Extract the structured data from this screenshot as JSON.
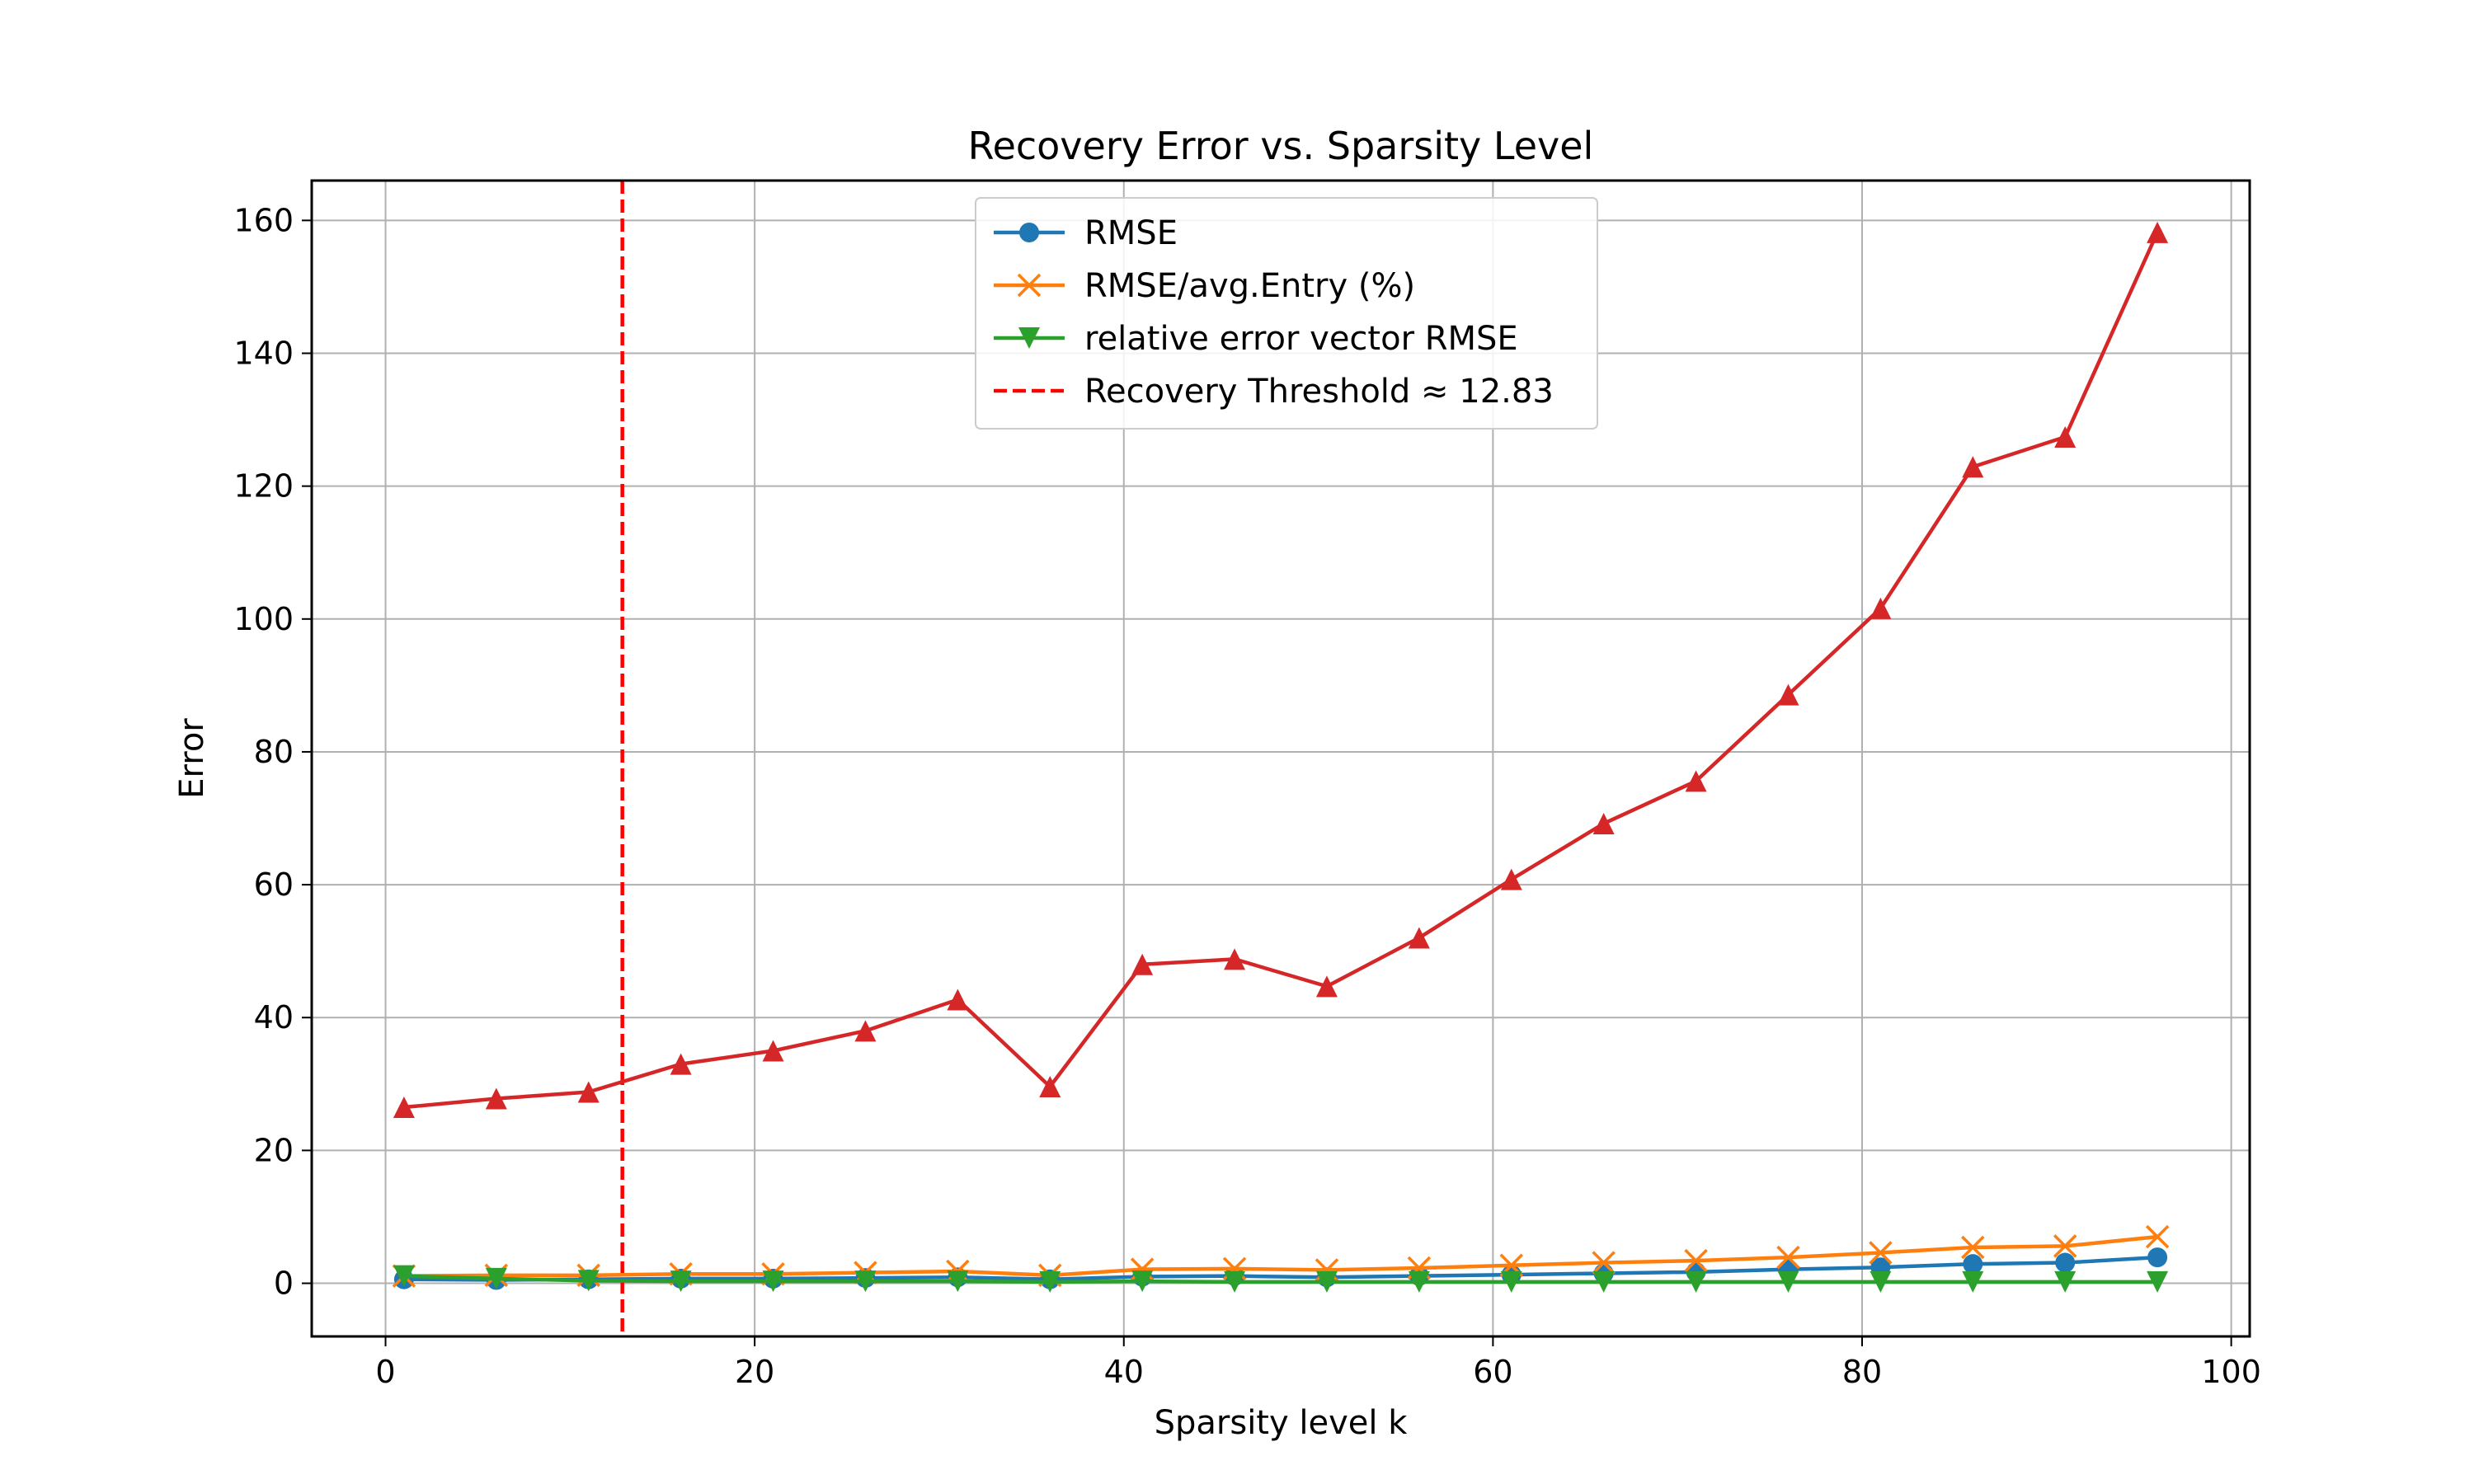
{
  "chart_data": {
    "type": "line",
    "title": "Recovery Error vs. Sparsity Level",
    "xlabel": "Sparsity level k",
    "ylabel": "Error",
    "xlim": [
      -4,
      101
    ],
    "ylim": [
      -8,
      166
    ],
    "xticks": [
      "0",
      "20",
      "40",
      "60",
      "80",
      "100"
    ],
    "yticks": [
      "0",
      "20",
      "40",
      "60",
      "80",
      "100",
      "120",
      "140",
      "160"
    ],
    "grid": true,
    "legend_position": "top-center",
    "x": [
      1,
      6,
      11,
      16,
      21,
      26,
      31,
      36,
      41,
      46,
      51,
      56,
      61,
      66,
      71,
      76,
      81,
      86,
      91,
      96
    ],
    "series": [
      {
        "name": "RMSE",
        "color": "#1f77b4",
        "marker": "circle",
        "values": [
          0.6,
          0.5,
          0.6,
          0.7,
          0.7,
          0.8,
          0.9,
          0.6,
          1.0,
          1.1,
          0.9,
          1.1,
          1.3,
          1.5,
          1.7,
          2.1,
          2.4,
          2.9,
          3.1,
          3.9
        ]
      },
      {
        "name": "RMSE/avg.Entry (%)",
        "color": "#ff7f0e",
        "marker": "x",
        "values": [
          1.1,
          1.2,
          1.2,
          1.4,
          1.4,
          1.6,
          1.8,
          1.2,
          2.1,
          2.2,
          2.0,
          2.3,
          2.7,
          3.1,
          3.4,
          3.9,
          4.6,
          5.4,
          5.6,
          7.0
        ]
      },
      {
        "name": "relative error vector RMSE",
        "color": "#2ca02c",
        "marker": "triangle-down",
        "values": [
          1.1,
          0.7,
          0.4,
          0.3,
          0.3,
          0.3,
          0.3,
          0.2,
          0.3,
          0.2,
          0.2,
          0.2,
          0.2,
          0.2,
          0.2,
          0.2,
          0.2,
          0.2,
          0.2,
          0.2
        ]
      },
      {
        "name": "",
        "color": "#d62728",
        "marker": "triangle-up",
        "values": [
          26.5,
          27.8,
          28.8,
          33.0,
          35.0,
          38.0,
          42.7,
          29.6,
          48.0,
          48.8,
          44.7,
          52.0,
          60.8,
          69.2,
          75.6,
          88.6,
          101.6,
          122.9,
          127.4,
          158.2
        ]
      }
    ],
    "threshold": {
      "label": "Recovery Threshold ≈ 12.83",
      "x": 12.83,
      "color": "#ff0000",
      "style": "dashed"
    }
  }
}
